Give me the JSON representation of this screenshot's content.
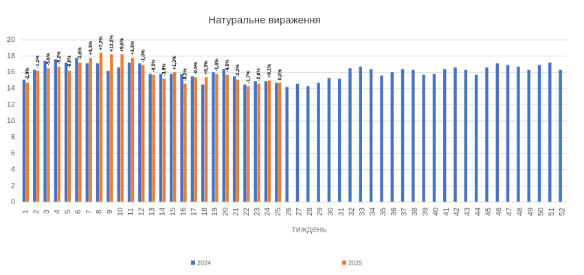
{
  "chart_data": {
    "type": "bar",
    "title": "Натуральне вираження",
    "x_label": "тиждень",
    "categories": [
      "1",
      "2",
      "3",
      "4",
      "5",
      "6",
      "7",
      "8",
      "9",
      "10",
      "11",
      "12",
      "13",
      "14",
      "15",
      "16",
      "17",
      "18",
      "19",
      "20",
      "21",
      "22",
      "23",
      "24",
      "25",
      "26",
      "27",
      "28",
      "29",
      "30",
      "31",
      "32",
      "33",
      "34",
      "35",
      "36",
      "37",
      "38",
      "39",
      "40",
      "41",
      "42",
      "43",
      "44",
      "45",
      "46",
      "47",
      "48",
      "49",
      "50",
      "51",
      "52"
    ],
    "series": [
      {
        "name": "2024",
        "color": "#4472c4",
        "values": [
          15.1,
          16.3,
          17.4,
          17.6,
          17.2,
          17.8,
          17.1,
          17.1,
          16.2,
          16.6,
          17.2,
          17.1,
          15.8,
          15.8,
          15.8,
          15.8,
          15.5,
          14.5,
          16.0,
          16.4,
          15.5,
          14.5,
          14.9,
          14.9,
          14.7,
          14.2,
          14.6,
          14.3,
          14.7,
          15.3,
          15.2,
          16.5,
          16.7,
          16.4,
          15.6,
          16.0,
          16.4,
          16.3,
          15.7,
          15.8,
          16.4,
          16.6,
          16.3,
          15.7,
          16.6,
          17.1,
          16.9,
          16.7,
          16.3,
          16.9,
          17.2,
          16.3
        ]
      },
      {
        "name": "2025",
        "color": "#ed7d31",
        "values": [
          14.7,
          16.2,
          16.5,
          16.7,
          16.2,
          17.2,
          17.8,
          18.4,
          18.2,
          18.2,
          17.8,
          16.9,
          15.7,
          15.2,
          16.0,
          14.6,
          15.4,
          15.4,
          15.8,
          15.7,
          15.1,
          14.3,
          14.6,
          15.0,
          14.7,
          null,
          null,
          null,
          null,
          null,
          null,
          null,
          null,
          null,
          null,
          null,
          null,
          null,
          null,
          null,
          null,
          null,
          null,
          null,
          null,
          null,
          null,
          null,
          null,
          null,
          null,
          null
        ],
        "change_labels": [
          "-2,9%",
          "-1,2%",
          "-5,6%",
          "-5,2%",
          "-6,0%",
          "-3,6%",
          "+4,3%",
          "+7,2%",
          "+12,2%",
          "+9,6%",
          "+3,3%",
          "-1,0%",
          "-0,5%",
          "-3,9%",
          "+1,3%",
          "-8,3%",
          "-0,5%",
          "+6,3%",
          "-1,6%",
          "-4,5%",
          "-2,2%",
          "-1,7%",
          "-2,6%",
          "+0,1%",
          "0,0%"
        ]
      }
    ],
    "ylim": [
      0,
      20
    ],
    "yticks": [
      0,
      2,
      4,
      6,
      8,
      10,
      12,
      14,
      16,
      18,
      20
    ],
    "grid": true,
    "legend": "bottom"
  }
}
